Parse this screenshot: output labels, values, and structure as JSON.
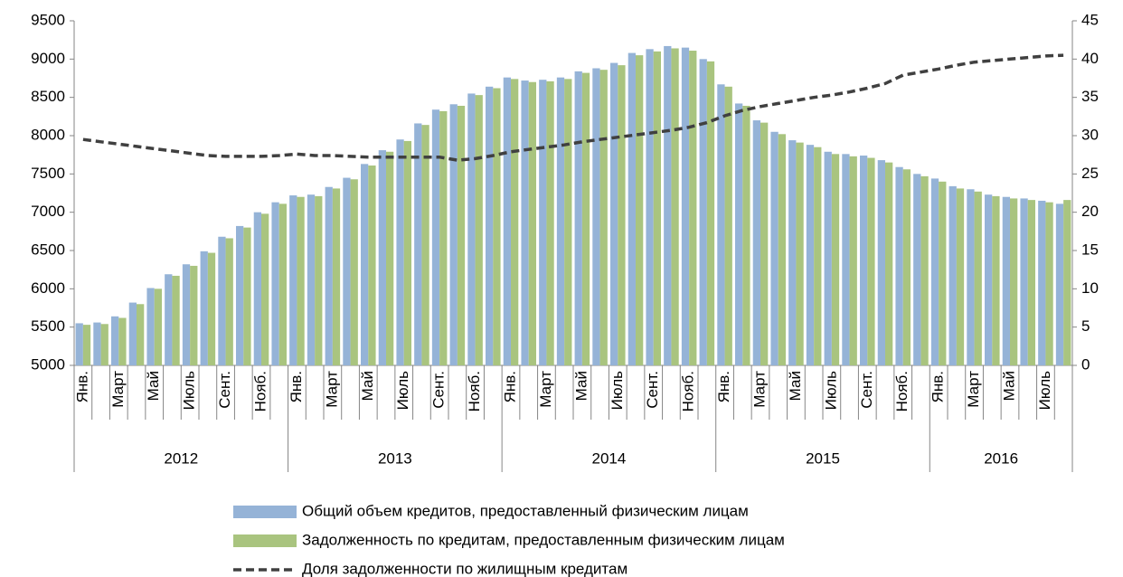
{
  "chart_data": {
    "type": "bar-line",
    "categories": [
      "Янв.",
      null,
      "Март",
      null,
      "Май",
      null,
      "Июль",
      null,
      "Сент.",
      null,
      "Нояб.",
      null,
      "Янв.",
      null,
      "Март",
      null,
      "Май",
      null,
      "Июль",
      null,
      "Сент.",
      null,
      "Нояб.",
      null,
      "Янв.",
      null,
      "Март",
      null,
      "Май",
      null,
      "Июль",
      null,
      "Сент.",
      null,
      "Нояб.",
      null,
      "Янв.",
      null,
      "Март",
      null,
      "Май",
      null,
      "Июль",
      null,
      "Сент.",
      null,
      "Нояб.",
      null,
      "Янв.",
      null,
      "Март",
      null,
      "Май",
      null,
      "Июль",
      null
    ],
    "groups": [
      "2012",
      "2013",
      "2014",
      "2015",
      "2016"
    ],
    "series": [
      {
        "name": "Общий объем кредитов, предоставленный физическим лицам",
        "color": "#95b3d7",
        "kind": "bar",
        "values": [
          5550,
          5560,
          5640,
          5820,
          6010,
          6190,
          6320,
          6490,
          6680,
          6820,
          7000,
          7130,
          7220,
          7230,
          7330,
          7450,
          7630,
          7810,
          7950,
          8160,
          8340,
          8410,
          8550,
          8640,
          8760,
          8720,
          8730,
          8760,
          8840,
          8880,
          8950,
          9080,
          9130,
          9170,
          9150,
          9000,
          8670,
          8420,
          8200,
          8050,
          7940,
          7880,
          7790,
          7760,
          7740,
          7680,
          7590,
          7500,
          7440,
          7340,
          7300,
          7230,
          7200,
          7180,
          7150,
          7110
        ]
      },
      {
        "name": "Задолженность по кредитам, предоставленным физическим лицам",
        "color": "#a9c47f",
        "kind": "bar",
        "values": [
          5530,
          5540,
          5620,
          5800,
          6000,
          6170,
          6300,
          6470,
          6660,
          6800,
          6980,
          7110,
          7200,
          7210,
          7310,
          7430,
          7610,
          7790,
          7930,
          8140,
          8320,
          8390,
          8530,
          8620,
          8740,
          8700,
          8710,
          8740,
          8820,
          8860,
          8920,
          9050,
          9100,
          9140,
          9110,
          8970,
          8640,
          8390,
          8170,
          8020,
          7910,
          7850,
          7760,
          7730,
          7710,
          7650,
          7560,
          7470,
          7400,
          7310,
          7270,
          7210,
          7180,
          7160,
          7130,
          7160
        ]
      },
      {
        "name": "Доля задолженности по жилищным кредитам",
        "color": "#404040",
        "kind": "line",
        "axis": "y2",
        "values": [
          29.5,
          29.2,
          28.9,
          28.6,
          28.3,
          28.0,
          27.7,
          27.4,
          27.3,
          27.3,
          27.3,
          27.4,
          27.6,
          27.4,
          27.4,
          27.3,
          27.2,
          27.2,
          27.2,
          27.2,
          27.2,
          26.8,
          27.0,
          27.4,
          27.9,
          28.2,
          28.5,
          28.8,
          29.2,
          29.5,
          29.8,
          30.1,
          30.4,
          30.7,
          31.1,
          31.7,
          32.6,
          33.3,
          33.8,
          34.2,
          34.6,
          35.0,
          35.3,
          35.7,
          36.2,
          36.8,
          37.9,
          38.3,
          38.7,
          39.2,
          39.6,
          39.8,
          40.0,
          40.2,
          40.4,
          40.5
        ]
      }
    ],
    "ylim": [
      5000,
      9500
    ],
    "yticks": [
      5000,
      5500,
      6000,
      6500,
      7000,
      7500,
      8000,
      8500,
      9000,
      9500
    ],
    "y2lim": [
      0,
      45
    ],
    "y2ticks": [
      0,
      5,
      10,
      15,
      20,
      25,
      30,
      35,
      40,
      45
    ],
    "grid": false
  }
}
